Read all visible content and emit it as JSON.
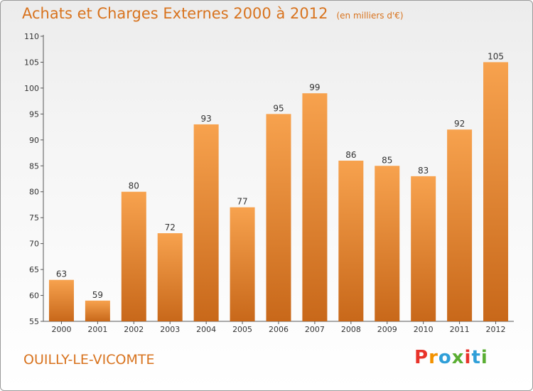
{
  "title": "Achats et Charges Externes 2000 à 2012",
  "subtitle": "(en milliers d'€)",
  "commune": "OUILLY-LE-VICOMTE",
  "brand": "Proxiti",
  "colors": {
    "accent": "#d8731e",
    "bar_top": "#f7a24e",
    "bar_bottom": "#c8681a",
    "brand_letters": [
      "#e8332a",
      "#f39200",
      "#2f9fd8",
      "#5aae32",
      "#e8332a",
      "#2f9fd8",
      "#5aae32"
    ]
  },
  "chart_data": {
    "type": "bar",
    "categories": [
      "2000",
      "2001",
      "2002",
      "2003",
      "2004",
      "2005",
      "2006",
      "2007",
      "2008",
      "2009",
      "2010",
      "2011",
      "2012"
    ],
    "values": [
      63,
      59,
      80,
      72,
      93,
      77,
      95,
      99,
      86,
      85,
      83,
      92,
      105
    ],
    "ylim": [
      55,
      110
    ],
    "yticks": [
      55,
      60,
      65,
      70,
      75,
      80,
      85,
      90,
      95,
      100,
      105,
      110
    ],
    "grid": false,
    "data_labels": true
  }
}
